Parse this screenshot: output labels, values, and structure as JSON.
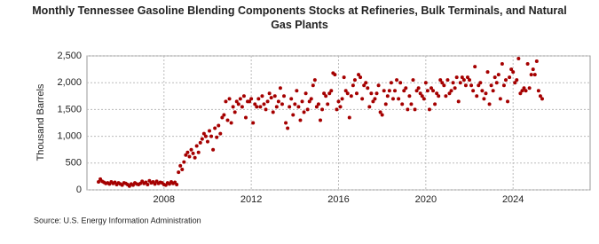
{
  "chart_data": {
    "type": "scatter",
    "title": "Monthly Tennessee Gasoline Blending Components Stocks at Refineries, Bulk Terminals, and Natural Gas Plants",
    "y_label": "Thousand Barrels",
    "source": "Source: U.S. Energy Information Administration",
    "color": "#a50000",
    "grid": true,
    "ylim": [
      0,
      2500
    ],
    "yticks": [
      0,
      500,
      {
        "value": 1000,
        "label": "1,000"
      },
      {
        "value": 1500,
        "label": "1,500"
      },
      {
        "value": 2000,
        "label": "2,000"
      },
      {
        "value": 2500,
        "label": "2,500"
      }
    ],
    "categories": [
      null,
      null,
      null,
      null,
      null,
      null,
      null,
      null,
      null,
      null,
      null,
      null,
      null,
      null,
      null,
      null,
      null,
      null,
      null,
      null,
      null,
      null,
      null,
      null,
      null,
      null,
      null,
      null,
      null,
      null,
      null,
      null,
      null,
      null,
      null,
      null,
      "2008",
      null,
      null,
      null,
      null,
      null,
      null,
      null,
      null,
      null,
      null,
      null,
      null,
      null,
      null,
      null,
      null,
      null,
      null,
      null,
      null,
      null,
      null,
      null,
      null,
      null,
      null,
      null,
      null,
      null,
      null,
      null,
      null,
      null,
      null,
      null,
      null,
      null,
      null,
      null,
      null,
      null,
      null,
      null,
      null,
      null,
      null,
      null,
      "2012",
      null,
      null,
      null,
      null,
      null,
      null,
      null,
      null,
      null,
      null,
      null,
      null,
      null,
      null,
      null,
      null,
      null,
      null,
      null,
      null,
      null,
      null,
      null,
      null,
      null,
      null,
      null,
      null,
      null,
      null,
      null,
      null,
      null,
      null,
      null,
      null,
      null,
      null,
      null,
      null,
      null,
      null,
      null,
      null,
      null,
      null,
      null,
      "2016",
      null,
      null,
      null,
      null,
      null,
      null,
      null,
      null,
      null,
      null,
      null,
      null,
      null,
      null,
      null,
      null,
      null,
      null,
      null,
      null,
      null,
      null,
      null,
      null,
      null,
      null,
      null,
      null,
      null,
      null,
      null,
      null,
      null,
      null,
      null,
      null,
      null,
      null,
      null,
      null,
      null,
      null,
      null,
      null,
      null,
      null,
      null,
      "2020",
      null,
      null,
      null,
      null,
      null,
      null,
      null,
      null,
      null,
      null,
      null,
      null,
      null,
      null,
      null,
      null,
      null,
      null,
      null,
      null,
      null,
      null,
      null,
      null,
      null,
      null,
      null,
      null,
      null,
      null,
      null,
      null,
      null,
      null,
      null,
      null,
      null,
      null,
      null,
      null,
      null,
      null,
      null,
      null,
      null,
      null,
      null,
      "2024",
      null,
      null,
      null,
      null,
      null,
      null,
      null,
      null,
      null,
      null,
      null,
      null,
      null,
      null,
      null,
      null
    ],
    "values": [
      150,
      200,
      160,
      140,
      120,
      130,
      110,
      150,
      120,
      140,
      100,
      130,
      110,
      90,
      130,
      120,
      100,
      70,
      110,
      90,
      130,
      110,
      100,
      120,
      160,
      120,
      140,
      100,
      170,
      130,
      150,
      110,
      160,
      120,
      140,
      130,
      100,
      90,
      130,
      110,
      150,
      120,
      140,
      100,
      330,
      450,
      380,
      520,
      650,
      700,
      620,
      750,
      680,
      600,
      820,
      700,
      880,
      950,
      1050,
      1000,
      900,
      1100,
      1000,
      750,
      1150,
      980,
      1200,
      1050,
      1350,
      1400,
      1650,
      1300,
      1700,
      1250,
      1550,
      1450,
      1650,
      1600,
      1700,
      1550,
      1750,
      1350,
      1650,
      1650,
      1700,
      1250,
      1600,
      1550,
      1700,
      1550,
      1750,
      1600,
      1500,
      1650,
      1800,
      1720,
      1450,
      1750,
      1550,
      1650,
      1900,
      1600,
      1750,
      1250,
      1150,
      1550,
      1700,
      1400,
      1600,
      1850,
      1550,
      1300,
      1650,
      1450,
      1800,
      1500,
      1650,
      1700,
      1950,
      2050,
      1550,
      1600,
      1300,
      1500,
      1800,
      1750,
      1600,
      1800,
      1850,
      2180,
      2150,
      1500,
      1650,
      1550,
      1700,
      2100,
      1850,
      1800,
      1350,
      1750,
      1950,
      2050,
      1800,
      2150,
      2100,
      1700,
      1950,
      2000,
      1900,
      1550,
      1800,
      1650,
      1700,
      1800,
      1950,
      1450,
      1400,
      1850,
      1600,
      1750,
      1850,
      2000,
      1700,
      1850,
      2050,
      1700,
      2000,
      1600,
      1850,
      1900,
      1500,
      1750,
      1600,
      2050,
      1500,
      1850,
      1900,
      1800,
      1750,
      1700,
      2000,
      1850,
      1500,
      1900,
      1850,
      1600,
      1800,
      1750,
      2050,
      2000,
      1950,
      1750,
      2050,
      1800,
      1850,
      2000,
      1900,
      2100,
      1650,
      2000,
      2100,
      2050,
      1950,
      2100,
      2050,
      1950,
      1850,
      2300,
      1750,
      1950,
      2000,
      1850,
      1700,
      1800,
      2200,
      1600,
      1950,
      1850,
      2100,
      2000,
      2150,
      1700,
      2350,
      1950,
      2050,
      1650,
      2100,
      2250,
      2200,
      2000,
      2050,
      2450,
      1800,
      1850,
      1900,
      1850,
      2350,
      1900,
      2150,
      2250,
      2150,
      2400,
      1850,
      1750,
      1700
    ]
  }
}
